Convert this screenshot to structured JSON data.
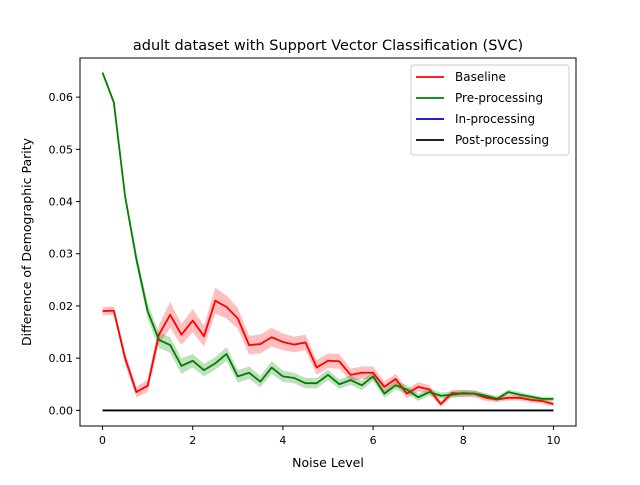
{
  "chart_data": {
    "type": "line",
    "title": "adult dataset with Support Vector Classification (SVC)",
    "xlabel": "Noise Level",
    "ylabel": "Difference of Demographic Parity",
    "xlim": [
      -0.5,
      10.5
    ],
    "ylim": [
      -0.003,
      0.0675
    ],
    "xticks": [
      0,
      2,
      4,
      6,
      8,
      10
    ],
    "xtick_labels": [
      "0",
      "2",
      "4",
      "6",
      "8",
      "10"
    ],
    "yticks": [
      0.0,
      0.01,
      0.02,
      0.03,
      0.04,
      0.05,
      0.06
    ],
    "ytick_labels": [
      "0.00",
      "0.01",
      "0.02",
      "0.03",
      "0.04",
      "0.05",
      "0.06"
    ],
    "grid": false,
    "legend_position": "top-right",
    "x": [
      0,
      0.25,
      0.5,
      0.75,
      1,
      1.25,
      1.5,
      1.75,
      2,
      2.25,
      2.5,
      2.75,
      3,
      3.25,
      3.5,
      3.75,
      4,
      4.25,
      4.5,
      4.75,
      5,
      5.25,
      5.5,
      5.75,
      6,
      6.25,
      6.5,
      6.75,
      7,
      7.25,
      7.5,
      7.75,
      8,
      8.25,
      8.5,
      8.75,
      9,
      9.25,
      9.5,
      9.75,
      10
    ],
    "series": [
      {
        "name": "Baseline",
        "color": "#ff0000",
        "values": [
          0.019,
          0.0191,
          0.01,
          0.0035,
          0.0047,
          0.0145,
          0.0183,
          0.0145,
          0.0172,
          0.0142,
          0.021,
          0.0198,
          0.0176,
          0.0125,
          0.0127,
          0.014,
          0.0131,
          0.0126,
          0.013,
          0.0082,
          0.0095,
          0.0094,
          0.0068,
          0.0072,
          0.0072,
          0.0045,
          0.006,
          0.0032,
          0.0045,
          0.004,
          0.0012,
          0.0033,
          0.0032,
          0.0032,
          0.0024,
          0.0021,
          0.0024,
          0.0024,
          0.002,
          0.0018,
          0.0012
        ],
        "band": [
          0.0008,
          0.0008,
          0.0012,
          0.001,
          0.0012,
          0.0018,
          0.0025,
          0.002,
          0.0022,
          0.002,
          0.0025,
          0.0022,
          0.002,
          0.0018,
          0.0018,
          0.0018,
          0.0016,
          0.0015,
          0.0015,
          0.0014,
          0.0014,
          0.0014,
          0.0012,
          0.0012,
          0.0012,
          0.001,
          0.001,
          0.0009,
          0.0009,
          0.0008,
          0.0006,
          0.0007,
          0.0007,
          0.0007,
          0.0006,
          0.0005,
          0.0005,
          0.0005,
          0.0005,
          0.0005,
          0.0005
        ]
      },
      {
        "name": "Pre-processing",
        "color": "#008000",
        "values": [
          0.0647,
          0.059,
          0.041,
          0.029,
          0.019,
          0.0135,
          0.0125,
          0.0085,
          0.0095,
          0.0077,
          0.009,
          0.0108,
          0.0065,
          0.0072,
          0.0055,
          0.0082,
          0.0065,
          0.0062,
          0.0052,
          0.0052,
          0.0068,
          0.005,
          0.0058,
          0.0048,
          0.0065,
          0.0032,
          0.0048,
          0.004,
          0.0025,
          0.0035,
          0.0028,
          0.003,
          0.0033,
          0.0032,
          0.0028,
          0.0022,
          0.0035,
          0.003,
          0.0026,
          0.0022,
          0.0022
        ],
        "band": [
          0.0003,
          0.0005,
          0.0008,
          0.0012,
          0.0015,
          0.0015,
          0.0015,
          0.0015,
          0.0013,
          0.0012,
          0.0012,
          0.0013,
          0.0012,
          0.0012,
          0.0011,
          0.0012,
          0.0011,
          0.001,
          0.001,
          0.001,
          0.001,
          0.0009,
          0.0009,
          0.0009,
          0.0009,
          0.0008,
          0.0008,
          0.0008,
          0.0007,
          0.0007,
          0.0006,
          0.0006,
          0.0006,
          0.0005,
          0.0005,
          0.0005,
          0.0005,
          0.0005,
          0.0004,
          0.0004,
          0.0004
        ]
      },
      {
        "name": "In-processing",
        "color": "#0000cc",
        "values": [
          0,
          0,
          0,
          0,
          0,
          0,
          0,
          0,
          0,
          0,
          0,
          0,
          0,
          0,
          0,
          0,
          0,
          0,
          0,
          0,
          0,
          0,
          0,
          0,
          0,
          0,
          0,
          0,
          0,
          0,
          0,
          0,
          0,
          0,
          0,
          0,
          0,
          0,
          0,
          0,
          0
        ]
      },
      {
        "name": "Post-processing",
        "color": "#000000",
        "values": [
          0,
          0,
          0,
          0,
          0,
          0,
          0,
          0,
          0,
          0,
          0,
          0,
          0,
          0,
          0,
          0,
          0,
          0,
          0,
          0,
          0,
          0,
          0,
          0,
          0,
          0,
          0,
          0,
          0,
          0,
          0,
          0,
          0,
          0,
          0,
          0,
          0,
          0,
          0,
          0,
          0
        ]
      }
    ]
  }
}
